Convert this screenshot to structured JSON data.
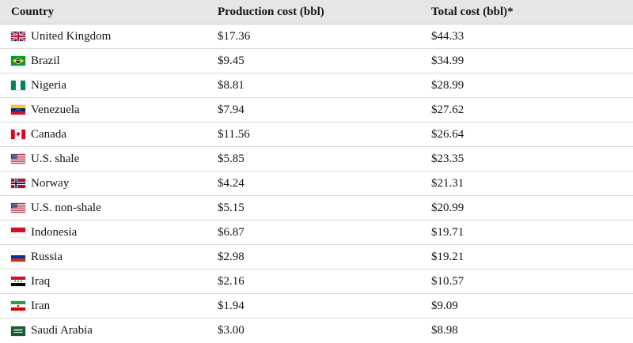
{
  "table": {
    "columns": [
      "Country",
      "Production cost (bbl)",
      "Total cost (bbl)*"
    ],
    "rows": [
      {
        "country": "United Kingdom",
        "icon": "flag-united-kingdom-icon",
        "production_cost": "$17.36",
        "total_cost": "$44.33"
      },
      {
        "country": "Brazil",
        "icon": "flag-brazil-icon",
        "production_cost": "$9.45",
        "total_cost": "$34.99"
      },
      {
        "country": "Nigeria",
        "icon": "flag-nigeria-icon",
        "production_cost": "$8.81",
        "total_cost": "$28.99"
      },
      {
        "country": "Venezuela",
        "icon": "flag-venezuela-icon",
        "production_cost": "$7.94",
        "total_cost": "$27.62"
      },
      {
        "country": "Canada",
        "icon": "flag-canada-icon",
        "production_cost": "$11.56",
        "total_cost": "$26.64"
      },
      {
        "country": "U.S. shale",
        "icon": "flag-united-states-icon",
        "production_cost": "$5.85",
        "total_cost": "$23.35"
      },
      {
        "country": "Norway",
        "icon": "flag-norway-icon",
        "production_cost": "$4.24",
        "total_cost": "$21.31"
      },
      {
        "country": "U.S. non-shale",
        "icon": "flag-united-states-icon",
        "production_cost": "$5.15",
        "total_cost": "$20.99"
      },
      {
        "country": "Indonesia",
        "icon": "flag-indonesia-icon",
        "production_cost": "$6.87",
        "total_cost": "$19.71"
      },
      {
        "country": "Russia",
        "icon": "flag-russia-icon",
        "production_cost": "$2.98",
        "total_cost": "$19.21"
      },
      {
        "country": "Iraq",
        "icon": "flag-iraq-icon",
        "production_cost": "$2.16",
        "total_cost": "$10.57"
      },
      {
        "country": "Iran",
        "icon": "flag-iran-icon",
        "production_cost": "$1.94",
        "total_cost": "$9.09"
      },
      {
        "country": "Saudi Arabia",
        "icon": "flag-saudi-arabia-icon",
        "production_cost": "$3.00",
        "total_cost": "$8.98"
      }
    ]
  },
  "colors": {
    "header_background": "#e5e6e6",
    "row_divider": "#dadada",
    "text": "#151515"
  },
  "chart_data": {
    "type": "table",
    "title": "",
    "columns": [
      "Country",
      "Production cost (bbl)",
      "Total cost (bbl)*"
    ],
    "rows": [
      [
        "United Kingdom",
        17.36,
        44.33
      ],
      [
        "Brazil",
        9.45,
        34.99
      ],
      [
        "Nigeria",
        8.81,
        28.99
      ],
      [
        "Venezuela",
        7.94,
        27.62
      ],
      [
        "Canada",
        11.56,
        26.64
      ],
      [
        "U.S. shale",
        5.85,
        23.35
      ],
      [
        "Norway",
        4.24,
        21.31
      ],
      [
        "U.S. non-shale",
        5.15,
        20.99
      ],
      [
        "Indonesia",
        6.87,
        19.71
      ],
      [
        "Russia",
        2.98,
        19.21
      ],
      [
        "Iraq",
        2.16,
        10.57
      ],
      [
        "Iran",
        1.94,
        9.09
      ],
      [
        "Saudi Arabia",
        3.0,
        8.98
      ]
    ]
  }
}
